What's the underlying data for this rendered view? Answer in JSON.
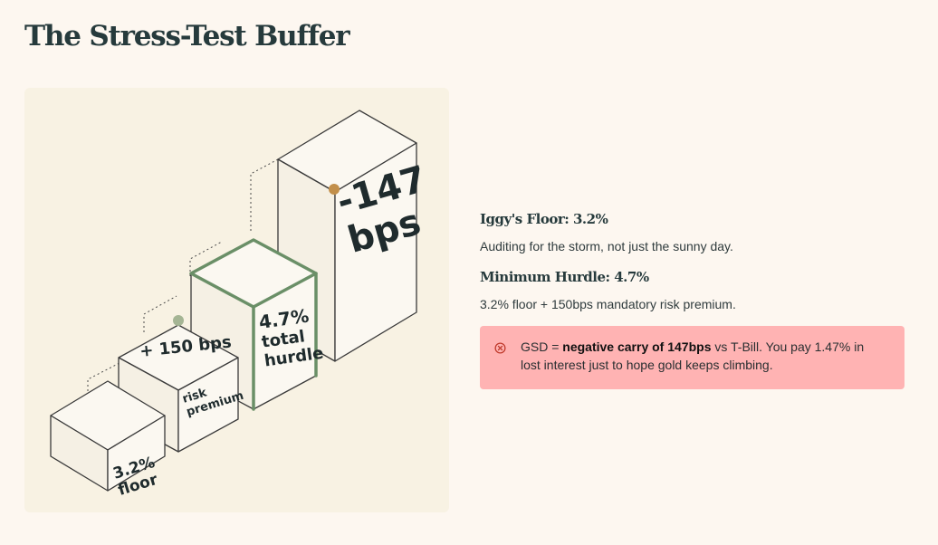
{
  "title": "The Stress-Test Buffer",
  "diagram": {
    "boxes": [
      {
        "label_lines": [
          "3.2%",
          "floor"
        ]
      },
      {
        "top_label": "+ 150 bps",
        "label_lines": [
          "risk",
          "premium"
        ]
      },
      {
        "label_lines": [
          "4.7%",
          "total",
          "hurdle"
        ]
      },
      {
        "label_lines": [
          "-147",
          "bps"
        ]
      }
    ],
    "colors": {
      "panel_bg": "#f8f2e3",
      "box_face": "#fbf8f1",
      "outline": "#3a3a3a",
      "hurdle_highlight": "#6a8f67",
      "marker_green": "#a5b594",
      "marker_gold": "#c28f4a"
    }
  },
  "info": {
    "floor_heading": "Iggy's Floor: 3.2%",
    "floor_text": "Auditing for the storm, not just the sunny day.",
    "hurdle_heading": "Minimum Hurdle: 4.7%",
    "hurdle_text": "3.2% floor + 150bps mandatory risk premium."
  },
  "alert": {
    "icon": "x-circle-icon",
    "prefix": "GSD = ",
    "emphasis": "negative carry of 147bps",
    "suffix": " vs T-Bill. You pay 1.47% in lost interest just to hope gold keeps climbing.",
    "background": "#ffb3b3"
  }
}
